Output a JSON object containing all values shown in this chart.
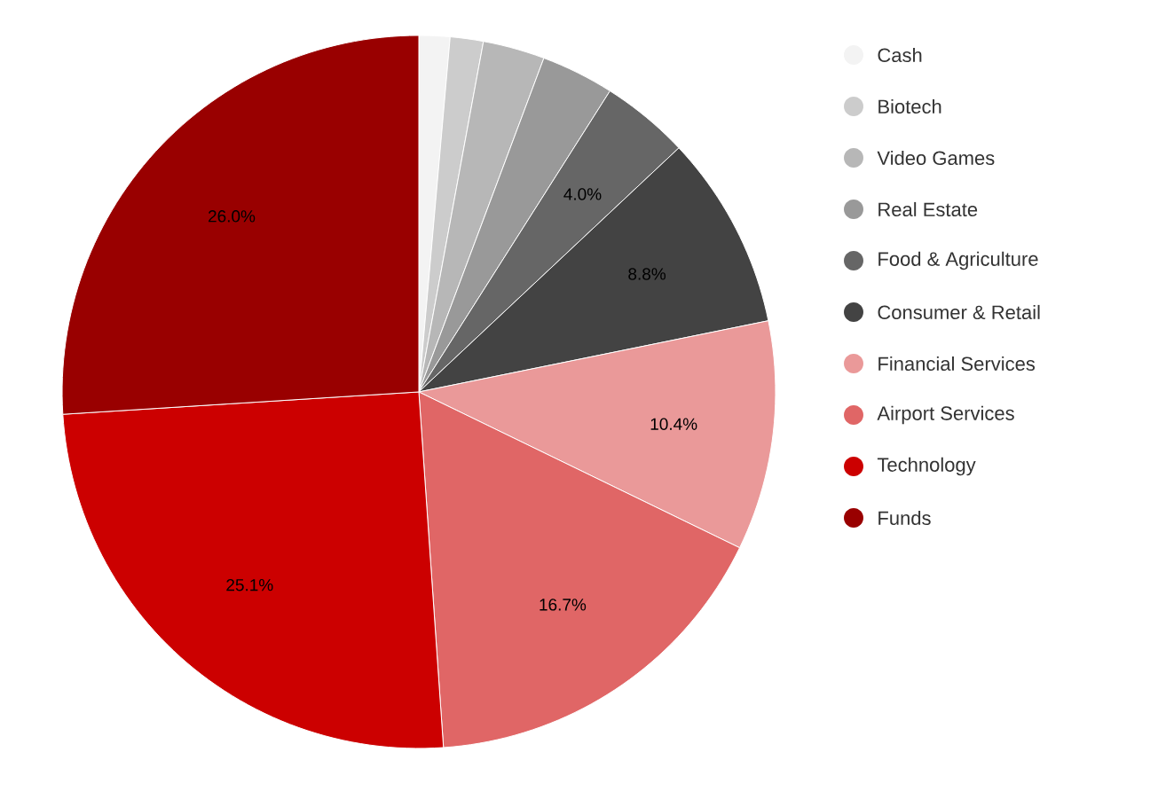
{
  "chart_data": {
    "type": "pie",
    "categories": [
      "Cash",
      "Biotech",
      "Video Games",
      "Real Estate",
      "Food & Agriculture",
      "Consumer & Retail",
      "Financial Services",
      "Airport Services",
      "Technology",
      "Funds"
    ],
    "values": [
      1.4,
      1.5,
      2.8,
      3.3,
      4.0,
      8.8,
      10.4,
      16.7,
      25.1,
      26.0
    ],
    "value_labels": [
      null,
      null,
      null,
      null,
      "4.0%",
      "8.8%",
      "10.4%",
      "16.7%",
      "25.1%",
      "26.0%"
    ],
    "colors": [
      "#f3f3f3",
      "#cccccc",
      "#b7b7b7",
      "#999999",
      "#666666",
      "#434343",
      "#ea9999",
      "#e06666",
      "#cc0000",
      "#990000"
    ],
    "legend": "right"
  }
}
